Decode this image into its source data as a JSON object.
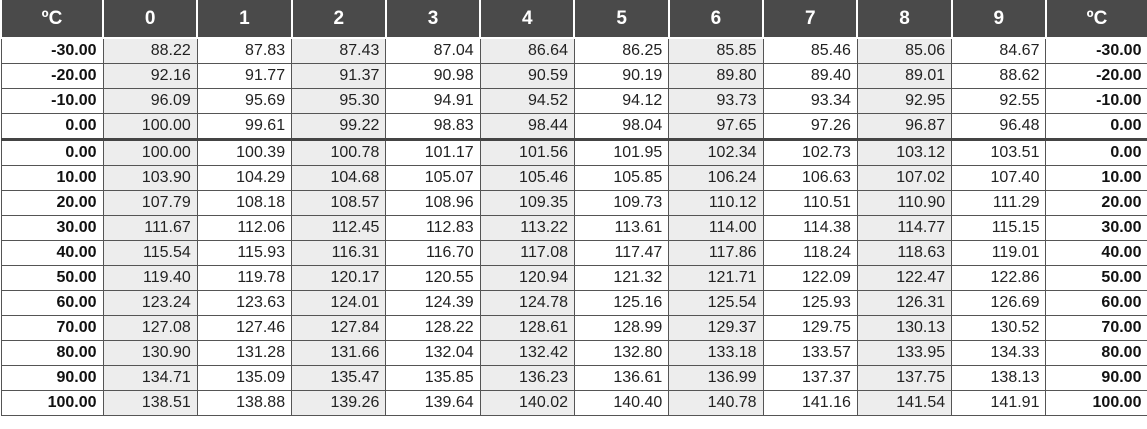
{
  "header": [
    "ºC",
    "0",
    "1",
    "2",
    "3",
    "4",
    "5",
    "6",
    "7",
    "8",
    "9",
    "ºC"
  ],
  "rows": [
    {
      "temp": "-30.00",
      "values": [
        "88.22",
        "87.83",
        "87.43",
        "87.04",
        "86.64",
        "86.25",
        "85.85",
        "85.46",
        "85.06",
        "84.67"
      ]
    },
    {
      "temp": "-20.00",
      "values": [
        "92.16",
        "91.77",
        "91.37",
        "90.98",
        "90.59",
        "90.19",
        "89.80",
        "89.40",
        "89.01",
        "88.62"
      ]
    },
    {
      "temp": "-10.00",
      "values": [
        "96.09",
        "95.69",
        "95.30",
        "94.91",
        "94.52",
        "94.12",
        "93.73",
        "93.34",
        "92.95",
        "92.55"
      ]
    },
    {
      "temp": "0.00",
      "values": [
        "100.00",
        "99.61",
        "99.22",
        "98.83",
        "98.44",
        "98.04",
        "97.65",
        "97.26",
        "96.87",
        "96.48"
      ]
    },
    {
      "temp": "0.00",
      "values": [
        "100.00",
        "100.39",
        "100.78",
        "101.17",
        "101.56",
        "101.95",
        "102.34",
        "102.73",
        "103.12",
        "103.51"
      ]
    },
    {
      "temp": "10.00",
      "values": [
        "103.90",
        "104.29",
        "104.68",
        "105.07",
        "105.46",
        "105.85",
        "106.24",
        "106.63",
        "107.02",
        "107.40"
      ]
    },
    {
      "temp": "20.00",
      "values": [
        "107.79",
        "108.18",
        "108.57",
        "108.96",
        "109.35",
        "109.73",
        "110.12",
        "110.51",
        "110.90",
        "111.29"
      ]
    },
    {
      "temp": "30.00",
      "values": [
        "111.67",
        "112.06",
        "112.45",
        "112.83",
        "113.22",
        "113.61",
        "114.00",
        "114.38",
        "114.77",
        "115.15"
      ]
    },
    {
      "temp": "40.00",
      "values": [
        "115.54",
        "115.93",
        "116.31",
        "116.70",
        "117.08",
        "117.47",
        "117.86",
        "118.24",
        "118.63",
        "119.01"
      ]
    },
    {
      "temp": "50.00",
      "values": [
        "119.40",
        "119.78",
        "120.17",
        "120.55",
        "120.94",
        "121.32",
        "121.71",
        "122.09",
        "122.47",
        "122.86"
      ]
    },
    {
      "temp": "60.00",
      "values": [
        "123.24",
        "123.63",
        "124.01",
        "124.39",
        "124.78",
        "125.16",
        "125.54",
        "125.93",
        "126.31",
        "126.69"
      ]
    },
    {
      "temp": "70.00",
      "values": [
        "127.08",
        "127.46",
        "127.84",
        "128.22",
        "128.61",
        "128.99",
        "129.37",
        "129.75",
        "130.13",
        "130.52"
      ]
    },
    {
      "temp": "80.00",
      "values": [
        "130.90",
        "131.28",
        "131.66",
        "132.04",
        "132.42",
        "132.80",
        "133.18",
        "133.57",
        "133.95",
        "134.33"
      ]
    },
    {
      "temp": "90.00",
      "values": [
        "134.71",
        "135.09",
        "135.47",
        "135.85",
        "136.23",
        "136.61",
        "136.99",
        "137.37",
        "137.75",
        "138.13"
      ]
    },
    {
      "temp": "100.00",
      "values": [
        "138.51",
        "138.88",
        "139.26",
        "139.64",
        "140.02",
        "140.40",
        "140.78",
        "141.16",
        "141.54",
        "141.91"
      ]
    }
  ]
}
